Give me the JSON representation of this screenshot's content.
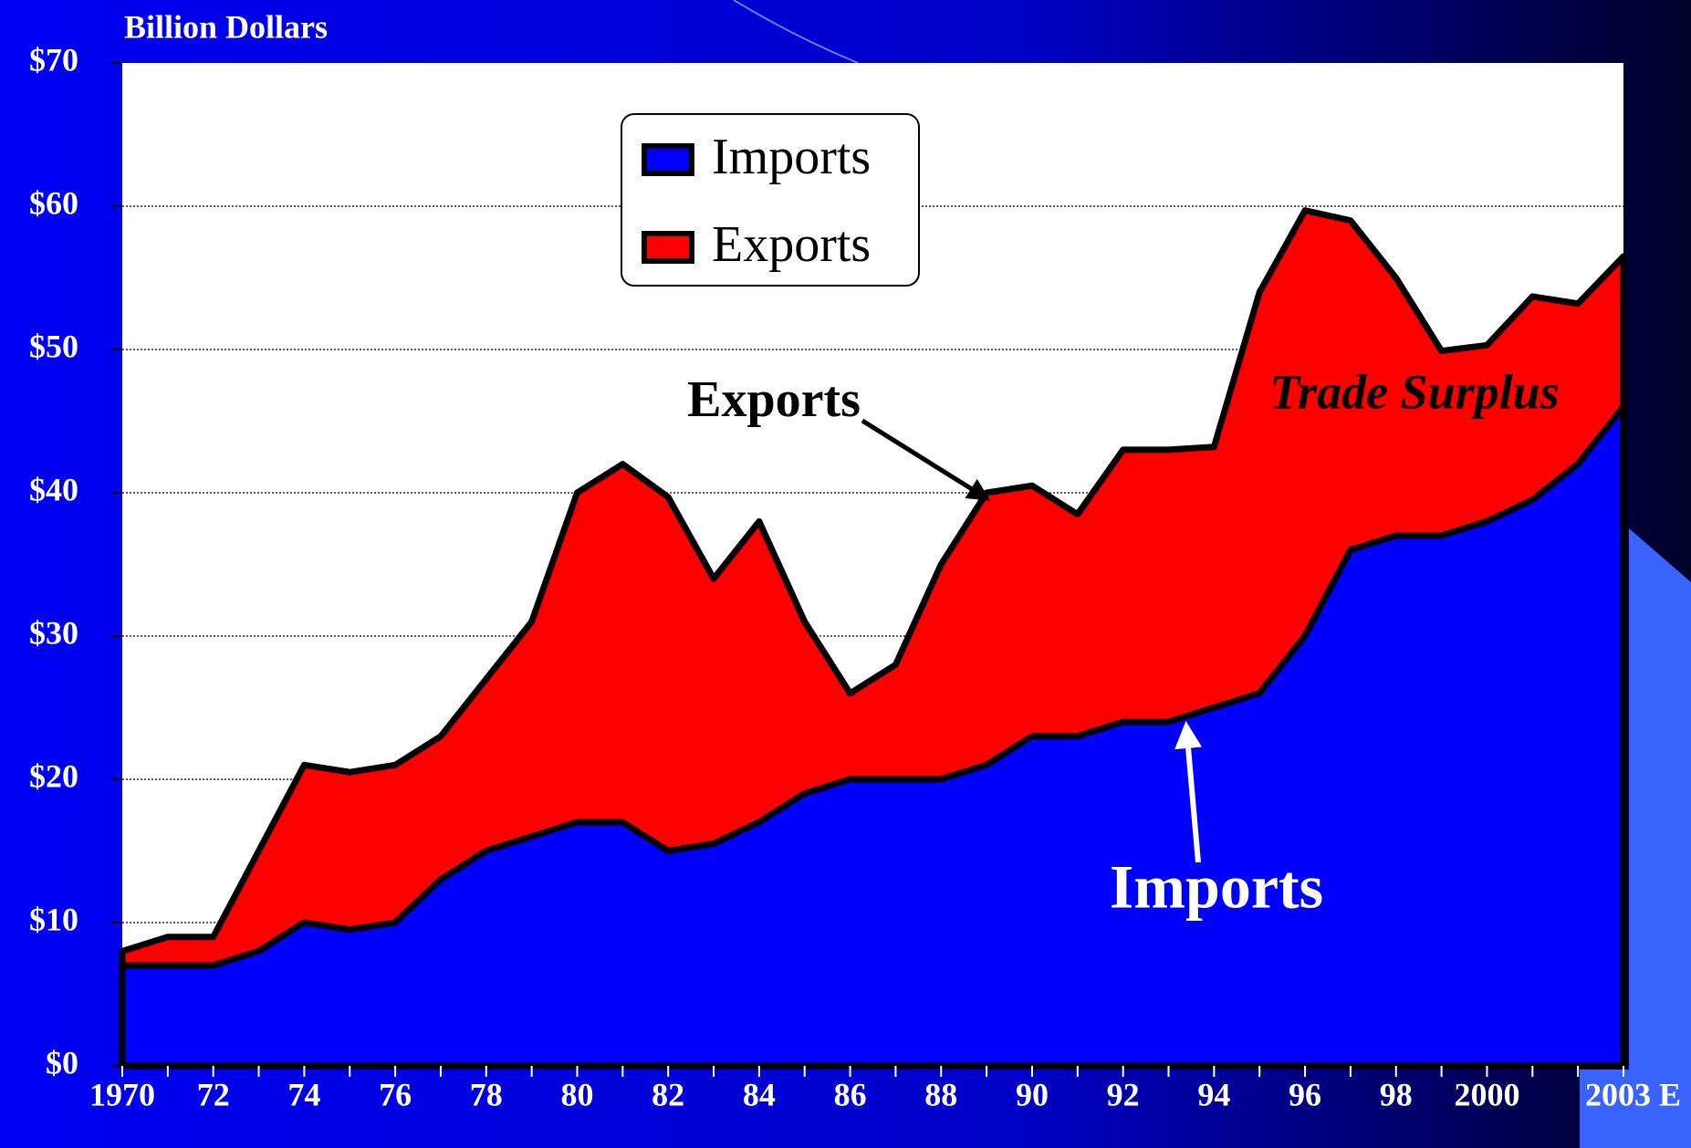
{
  "chart_data": {
    "type": "area",
    "y_label": "Billion Dollars",
    "categories": [
      "1970",
      null,
      "72",
      null,
      "74",
      null,
      "76",
      null,
      "78",
      null,
      "80",
      null,
      "82",
      null,
      "84",
      null,
      "86",
      null,
      "88",
      null,
      "90",
      null,
      "92",
      null,
      "94",
      null,
      "96",
      null,
      "98",
      null,
      "2000",
      null,
      null,
      "2003 E"
    ],
    "series": [
      {
        "name": "Imports",
        "color": "#0000ff",
        "values": [
          7,
          7,
          7,
          8,
          10,
          9.5,
          10,
          13,
          15,
          16,
          17,
          17,
          15,
          15.5,
          17,
          19,
          20,
          20,
          20,
          21,
          23,
          23,
          24,
          24,
          25,
          26,
          30,
          36,
          37,
          37,
          38,
          39.5,
          42,
          46
        ]
      },
      {
        "name": "Exports",
        "color": "#ff0000",
        "values": [
          8,
          9,
          9,
          15,
          21,
          20.5,
          21,
          23,
          27,
          31,
          40,
          42,
          39.7,
          34,
          38,
          31,
          26,
          28,
          35,
          40,
          40.5,
          38.5,
          43,
          43,
          43.2,
          54,
          59.7,
          59,
          55,
          49.9,
          50.3,
          53.7,
          53.2,
          56.5
        ]
      }
    ],
    "ylim": [
      0,
      70
    ],
    "yticks": [
      {
        "value": 0,
        "label": "$0"
      },
      {
        "value": 10,
        "label": "$10"
      },
      {
        "value": 20,
        "label": "$20"
      },
      {
        "value": 30,
        "label": "$30"
      },
      {
        "value": 40,
        "label": "$40"
      },
      {
        "value": 50,
        "label": "$50"
      },
      {
        "value": 60,
        "label": "$60"
      },
      {
        "value": 70,
        "label": "$70"
      }
    ],
    "grid": true,
    "annotations": [
      "Exports",
      "Trade Surplus",
      "Imports"
    ]
  }
}
